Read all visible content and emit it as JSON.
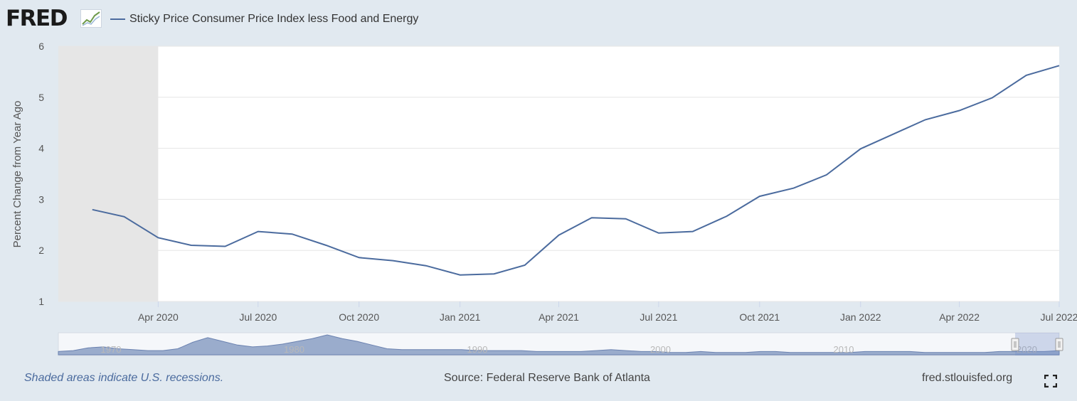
{
  "header": {
    "logo_text": "FRED",
    "logo_icon": "line-chart-icon",
    "series_label": "Sticky Price Consumer Price Index less Food and Energy"
  },
  "colors": {
    "series": "#4b6b9e",
    "recession_shade": "#e6e6e6",
    "plot_background": "#ffffff",
    "page_background": "#e1e9f0",
    "grid": "#e6e6e6",
    "navigator_fill": "#9aaccc",
    "navigator_line": "#6b82b0"
  },
  "chart_data": {
    "type": "line",
    "title": "",
    "xlabel": "",
    "ylabel": "Percent Change from Year Ago",
    "ylim": [
      1,
      6
    ],
    "yticks": [
      1,
      2,
      3,
      4,
      5,
      6
    ],
    "xlim": [
      "2020-01-01",
      "2022-07-01"
    ],
    "xticks": [
      {
        "date": "2020-04-01",
        "label": "Apr 2020"
      },
      {
        "date": "2020-07-01",
        "label": "Jul 2020"
      },
      {
        "date": "2020-10-01",
        "label": "Oct 2020"
      },
      {
        "date": "2021-01-01",
        "label": "Jan 2021"
      },
      {
        "date": "2021-04-01",
        "label": "Apr 2021"
      },
      {
        "date": "2021-07-01",
        "label": "Jul 2021"
      },
      {
        "date": "2021-10-01",
        "label": "Oct 2021"
      },
      {
        "date": "2022-01-01",
        "label": "Jan 2022"
      },
      {
        "date": "2022-04-01",
        "label": "Apr 2022"
      },
      {
        "date": "2022-07-01",
        "label": "Jul 2022"
      }
    ],
    "grid": true,
    "legend": "top-left",
    "recessions": [
      {
        "start": "2020-02-01",
        "end": "2020-04-01"
      }
    ],
    "series": [
      {
        "name": "Sticky Price Consumer Price Index less Food and Energy",
        "x": [
          "2020-02-01",
          "2020-03-01",
          "2020-04-01",
          "2020-05-01",
          "2020-06-01",
          "2020-07-01",
          "2020-08-01",
          "2020-09-01",
          "2020-10-01",
          "2020-11-01",
          "2020-12-01",
          "2021-01-01",
          "2021-02-01",
          "2021-03-01",
          "2021-04-01",
          "2021-05-01",
          "2021-06-01",
          "2021-07-01",
          "2021-08-01",
          "2021-09-01",
          "2021-10-01",
          "2021-11-01",
          "2021-12-01",
          "2022-01-01",
          "2022-02-01",
          "2022-03-01",
          "2022-04-01",
          "2022-05-01",
          "2022-06-01",
          "2022-07-01"
        ],
        "values": [
          2.8,
          2.66,
          2.25,
          2.1,
          2.08,
          2.37,
          2.32,
          2.1,
          1.86,
          1.8,
          1.7,
          1.52,
          1.54,
          1.71,
          2.3,
          2.64,
          2.62,
          2.34,
          2.37,
          2.67,
          3.06,
          3.22,
          3.48,
          3.99,
          4.29,
          4.56,
          4.74,
          4.99,
          5.43,
          5.62
        ]
      }
    ],
    "navigator": {
      "labels": [
        "1970",
        "1980",
        "1990",
        "2000",
        "2010",
        "2020"
      ],
      "values": [
        2,
        3,
        6,
        7,
        5,
        4,
        3,
        3,
        5,
        12,
        17,
        13,
        9,
        7,
        8,
        10,
        13,
        16,
        20,
        16,
        13,
        9,
        5,
        4,
        4,
        4,
        4,
        4,
        3,
        3,
        3,
        3,
        2,
        2,
        2,
        2,
        3,
        4,
        3,
        2,
        2,
        1,
        1,
        2,
        1,
        1,
        1,
        2,
        2,
        1,
        1,
        1,
        1,
        1,
        2,
        2,
        2,
        2,
        1,
        1,
        1,
        1,
        1,
        2,
        2,
        2,
        2,
        3
      ]
    }
  },
  "footer": {
    "note": "Shaded areas indicate U.S. recessions.",
    "source": "Source: Federal Reserve Bank of Atlanta",
    "site": "fred.stlouisfed.org",
    "fullscreen_icon": "fullscreen-icon"
  }
}
